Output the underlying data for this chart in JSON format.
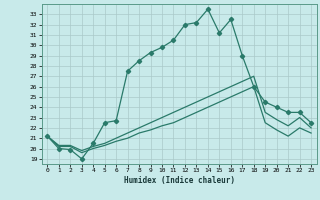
{
  "xlabel": "Humidex (Indice chaleur)",
  "bg_color": "#c8eaea",
  "grid_color": "#aacaca",
  "line_color": "#2a7a6a",
  "xlim": [
    -0.5,
    23.5
  ],
  "ylim": [
    18.5,
    34.0
  ],
  "xticks": [
    0,
    1,
    2,
    3,
    4,
    5,
    6,
    7,
    8,
    9,
    10,
    11,
    12,
    13,
    14,
    15,
    16,
    17,
    18,
    19,
    20,
    21,
    22,
    23
  ],
  "yticks": [
    19,
    20,
    21,
    22,
    23,
    24,
    25,
    26,
    27,
    28,
    29,
    30,
    31,
    32,
    33
  ],
  "series1_x": [
    0,
    1,
    2,
    3,
    4,
    5,
    6,
    7,
    8,
    9,
    10,
    11,
    12,
    13,
    14,
    15,
    16,
    17,
    18,
    19,
    20,
    21,
    22,
    23
  ],
  "series1_y": [
    21.2,
    20.0,
    19.9,
    19.0,
    20.5,
    22.5,
    22.7,
    27.5,
    28.5,
    29.3,
    29.8,
    30.5,
    32.0,
    32.2,
    33.5,
    31.2,
    32.5,
    29.0,
    26.0,
    24.5,
    24.0,
    23.5,
    23.5,
    22.5
  ],
  "series2_x": [
    0,
    1,
    2,
    3,
    4,
    5,
    6,
    7,
    8,
    9,
    10,
    11,
    12,
    13,
    14,
    15,
    16,
    17,
    18,
    19,
    20,
    21,
    22,
    23
  ],
  "series2_y": [
    21.2,
    20.3,
    20.3,
    19.8,
    20.2,
    20.5,
    21.0,
    21.5,
    22.0,
    22.5,
    23.0,
    23.5,
    24.0,
    24.5,
    25.0,
    25.5,
    26.0,
    26.5,
    27.0,
    23.5,
    22.8,
    22.2,
    23.0,
    22.0
  ],
  "series3_x": [
    0,
    1,
    2,
    3,
    4,
    5,
    6,
    7,
    8,
    9,
    10,
    11,
    12,
    13,
    14,
    15,
    16,
    17,
    18,
    19,
    20,
    21,
    22,
    23
  ],
  "series3_y": [
    21.2,
    20.2,
    20.2,
    19.6,
    20.0,
    20.3,
    20.7,
    21.0,
    21.5,
    21.8,
    22.2,
    22.5,
    23.0,
    23.5,
    24.0,
    24.5,
    25.0,
    25.5,
    26.0,
    22.5,
    21.8,
    21.2,
    22.0,
    21.5
  ]
}
